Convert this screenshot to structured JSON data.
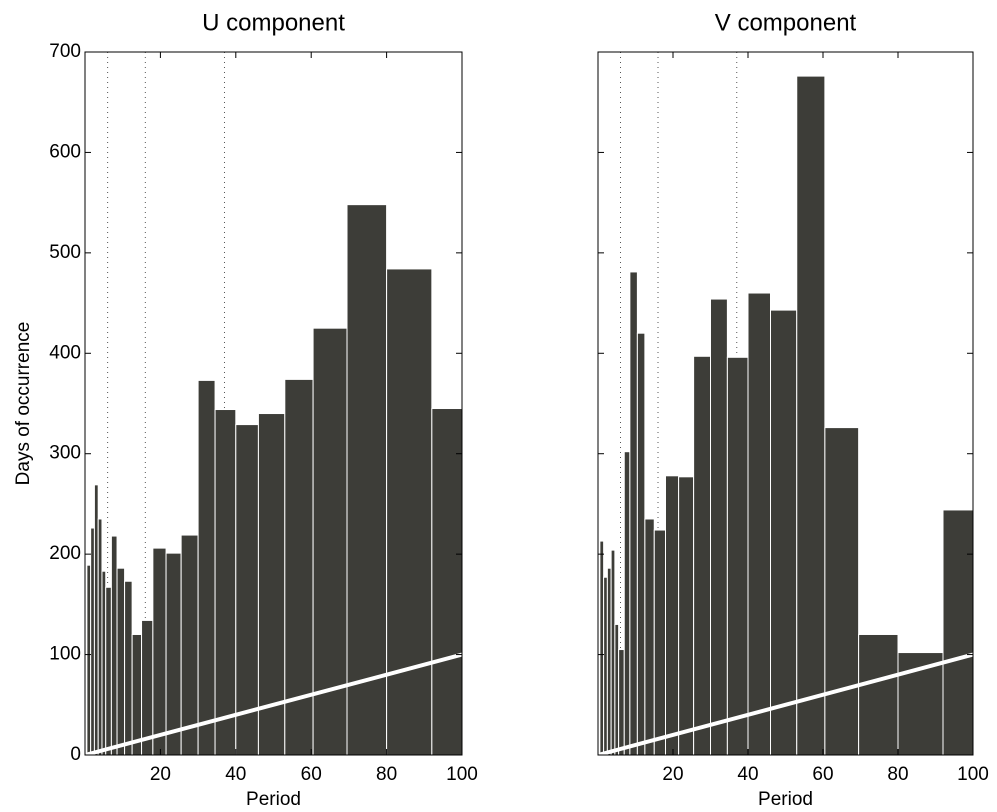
{
  "chart_data": [
    {
      "type": "histogram",
      "title": "U component",
      "xlabel": "Period",
      "ylabel": "Days of occurrence",
      "bins": [
        0.5,
        1.5,
        2.5,
        3.5,
        4.5,
        5.5,
        7,
        8.5,
        10.5,
        12.5,
        15,
        18,
        21.5,
        25.5,
        30,
        34.5,
        40,
        46,
        53,
        60.5,
        69.5,
        80,
        92,
        100
      ],
      "values": [
        189,
        226,
        269,
        235,
        183,
        167,
        218,
        186,
        173,
        120,
        134,
        206,
        201,
        219,
        373,
        344,
        329,
        340,
        374,
        425,
        548,
        484,
        345
      ],
      "color": "#3d3d38",
      "reference_line": {
        "x": [
          0,
          100
        ],
        "y": [
          0,
          100
        ],
        "color": "#ffffff"
      },
      "vlines": [
        6,
        16,
        37
      ],
      "xlim": [
        0,
        100
      ],
      "xticks": [
        20,
        40,
        60,
        80,
        100
      ],
      "ylim": [
        0,
        700
      ],
      "yticks": [
        0,
        100,
        200,
        300,
        400,
        500,
        600,
        700
      ],
      "show_ytick_labels": true
    },
    {
      "type": "histogram",
      "title": "V component",
      "xlabel": "Period",
      "bins": [
        0.5,
        1.5,
        2.5,
        3.5,
        4.5,
        5.5,
        7,
        8.5,
        10.5,
        12.5,
        15,
        18,
        21.5,
        25.5,
        30,
        34.5,
        40,
        46,
        53,
        60.5,
        69.5,
        80,
        92,
        100
      ],
      "values": [
        213,
        177,
        186,
        204,
        130,
        105,
        302,
        481,
        420,
        235,
        224,
        278,
        277,
        397,
        454,
        396,
        460,
        443,
        676,
        326,
        120,
        102,
        244
      ],
      "color": "#3d3d38",
      "reference_line": {
        "x": [
          0,
          100
        ],
        "y": [
          0,
          100
        ],
        "color": "#ffffff"
      },
      "vlines": [
        6,
        16,
        37
      ],
      "xlim": [
        0,
        100
      ],
      "xticks": [
        20,
        40,
        60,
        80,
        100
      ],
      "ylim": [
        0,
        700
      ],
      "yticks": [
        0,
        100,
        200,
        300,
        400,
        500,
        600,
        700
      ],
      "show_ytick_labels": false
    }
  ]
}
